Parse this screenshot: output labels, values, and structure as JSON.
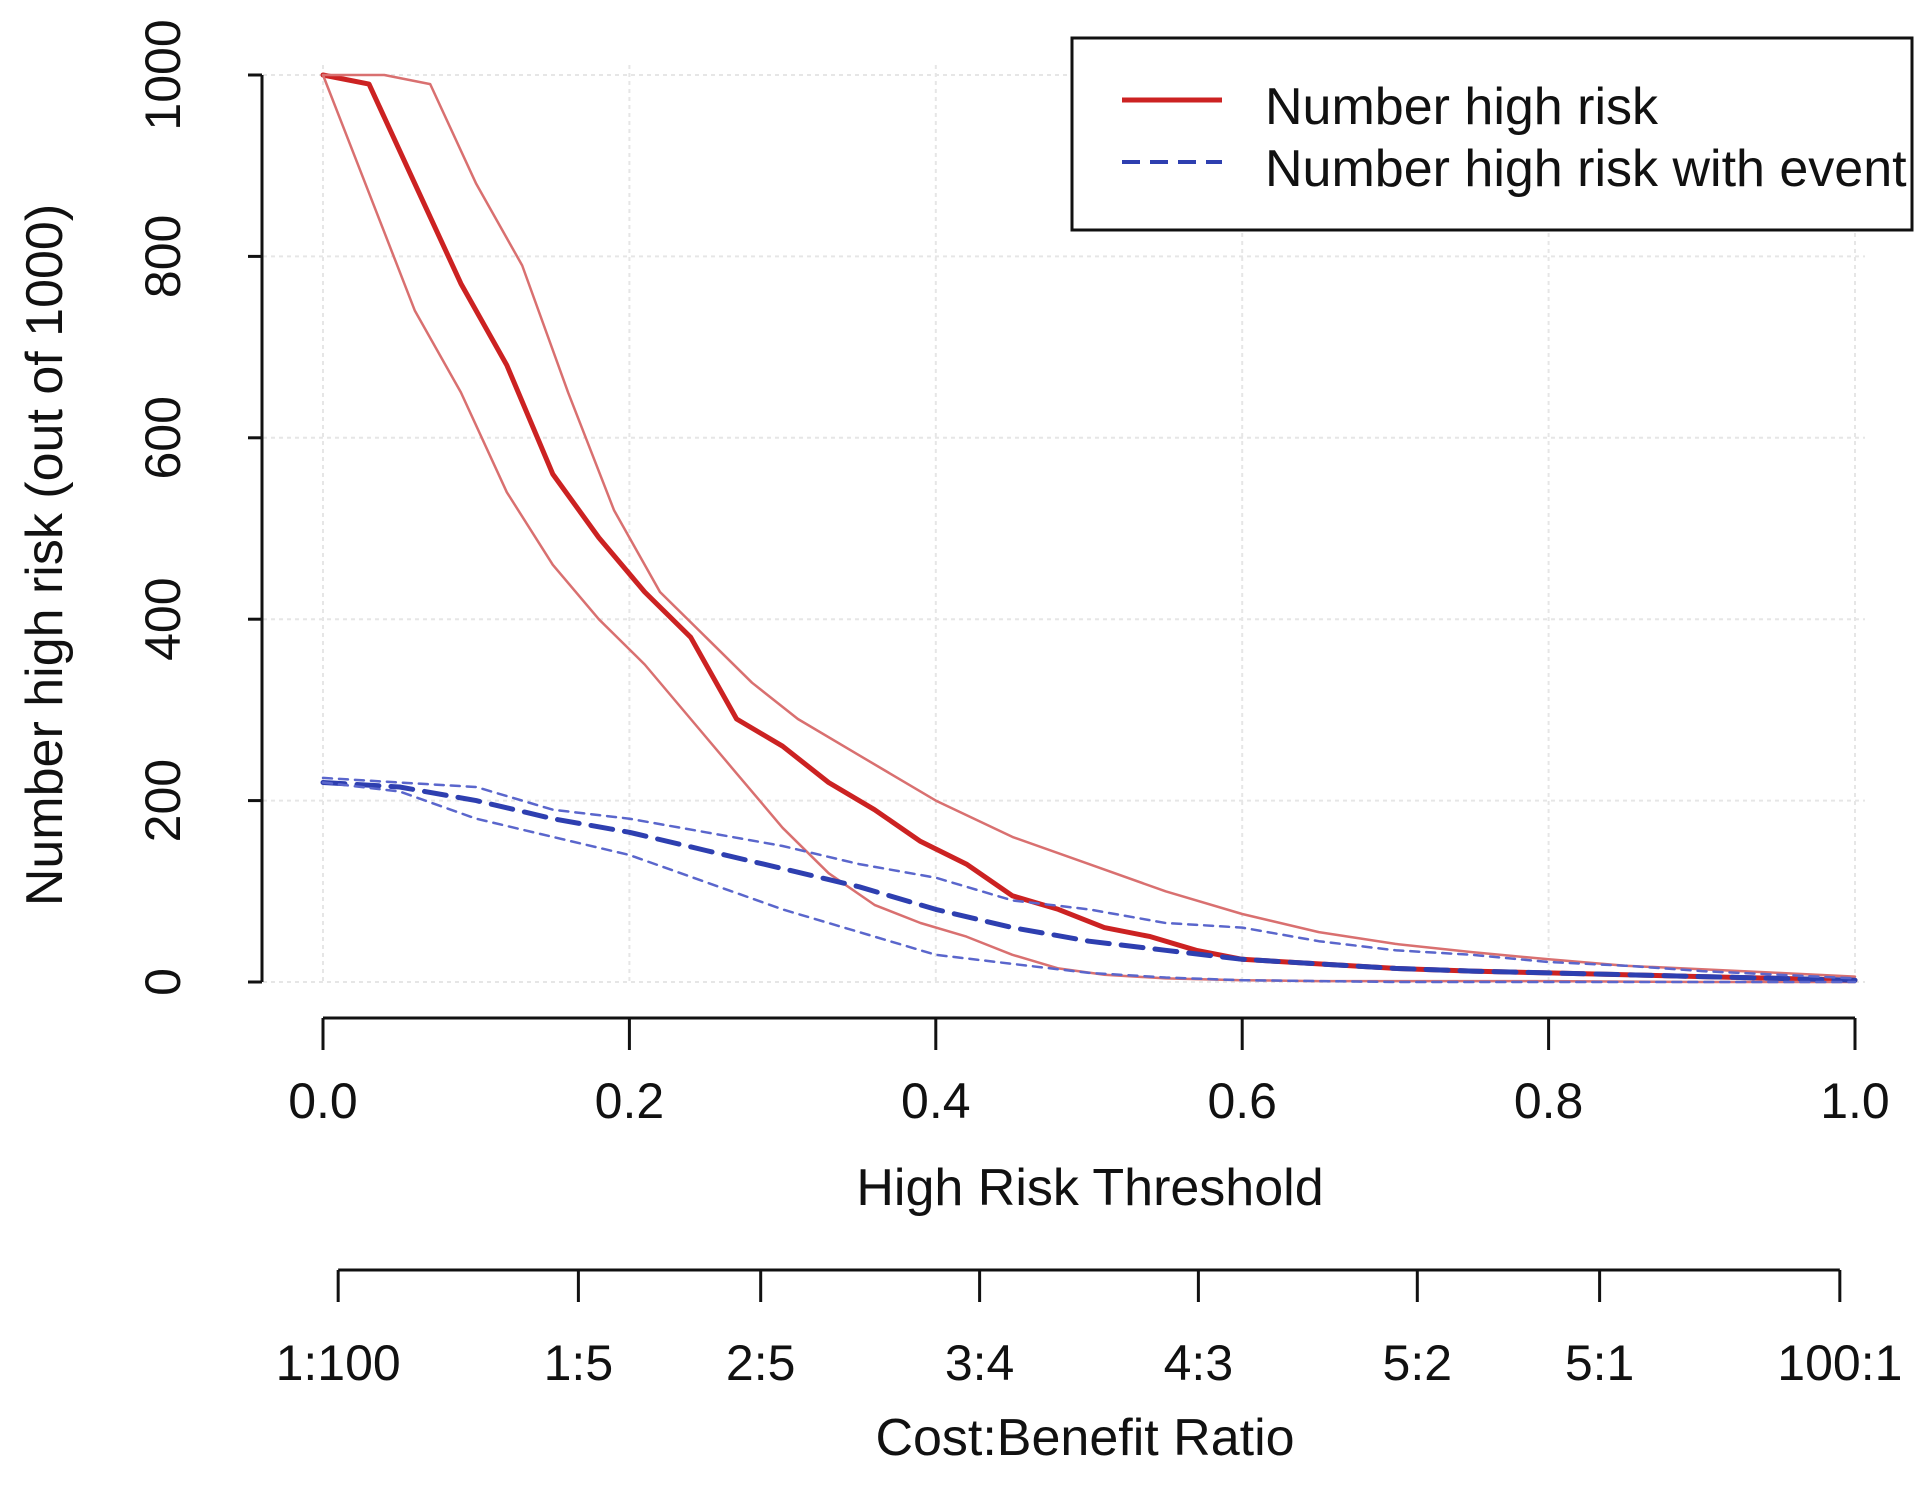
{
  "chart_data": {
    "type": "line",
    "xlabel": "High Risk Threshold",
    "ylabel": "Number high risk (out of 1000)",
    "xlim": [
      0,
      1
    ],
    "ylim": [
      0,
      1000
    ],
    "grid": true,
    "legend_position": "top-right",
    "x_ticks": [
      "0.0",
      "0.2",
      "0.4",
      "0.6",
      "0.8",
      "1.0"
    ],
    "x_tick_values": [
      0,
      0.2,
      0.4,
      0.6,
      0.8,
      1.0
    ],
    "y_ticks": [
      "0",
      "200",
      "400",
      "600",
      "800",
      "1000"
    ],
    "y_tick_values": [
      0,
      200,
      400,
      600,
      800,
      1000
    ],
    "secondary_axis": {
      "label": "Cost:Benefit Ratio",
      "ticks": [
        "1:100",
        "1:5",
        "2:5",
        "3:4",
        "4:3",
        "5:2",
        "5:1",
        "100:1"
      ],
      "tick_thresholds": [
        0.0099,
        0.1667,
        0.2857,
        0.4286,
        0.5714,
        0.7143,
        0.8333,
        0.9901
      ]
    },
    "legend": [
      {
        "name": "Number high risk",
        "color": "#cc2222",
        "style": "solid"
      },
      {
        "name": "Number high risk with event",
        "color": "#2e3fb0",
        "style": "dashed"
      }
    ],
    "series": [
      {
        "name": "Number high risk",
        "role": "main",
        "color": "#cc2222",
        "style": "solid",
        "x": [
          0,
          0.03,
          0.06,
          0.09,
          0.12,
          0.15,
          0.18,
          0.21,
          0.24,
          0.27,
          0.3,
          0.33,
          0.36,
          0.39,
          0.42,
          0.45,
          0.48,
          0.51,
          0.54,
          0.57,
          0.6,
          0.65,
          0.7,
          0.75,
          0.8,
          0.85,
          0.9,
          0.95,
          1.0
        ],
        "y": [
          1000,
          990,
          880,
          770,
          680,
          560,
          490,
          430,
          380,
          290,
          260,
          220,
          190,
          155,
          130,
          95,
          80,
          60,
          50,
          35,
          25,
          20,
          15,
          12,
          10,
          8,
          6,
          4,
          2
        ]
      },
      {
        "name": "Number high risk (upper bound)",
        "role": "ci",
        "color": "#d97070",
        "style": "solid",
        "x": [
          0,
          0.04,
          0.07,
          0.1,
          0.13,
          0.16,
          0.19,
          0.22,
          0.25,
          0.28,
          0.31,
          0.35,
          0.4,
          0.45,
          0.5,
          0.55,
          0.6,
          0.65,
          0.7,
          0.75,
          0.8,
          0.85,
          0.9,
          0.95,
          1.0
        ],
        "y": [
          1000,
          1000,
          990,
          880,
          790,
          650,
          520,
          430,
          380,
          330,
          290,
          250,
          200,
          160,
          130,
          100,
          75,
          55,
          42,
          33,
          25,
          18,
          14,
          10,
          6
        ]
      },
      {
        "name": "Number high risk (lower bound)",
        "role": "ci",
        "color": "#d97070",
        "style": "solid",
        "x": [
          0,
          0.03,
          0.06,
          0.09,
          0.12,
          0.15,
          0.18,
          0.21,
          0.24,
          0.27,
          0.3,
          0.33,
          0.36,
          0.39,
          0.42,
          0.45,
          0.48,
          0.51,
          0.55,
          0.6,
          0.65,
          0.7,
          0.8,
          0.9,
          1.0
        ],
        "y": [
          1000,
          870,
          740,
          650,
          540,
          460,
          400,
          350,
          290,
          230,
          170,
          120,
          85,
          65,
          50,
          30,
          15,
          8,
          4,
          2,
          1,
          1,
          1,
          0,
          0
        ]
      },
      {
        "name": "Number high risk with event",
        "role": "main",
        "color": "#2e3fb0",
        "style": "dashed",
        "x": [
          0,
          0.05,
          0.1,
          0.15,
          0.2,
          0.25,
          0.3,
          0.35,
          0.4,
          0.45,
          0.5,
          0.55,
          0.6,
          0.65,
          0.7,
          0.75,
          0.8,
          0.85,
          0.9,
          0.95,
          1.0
        ],
        "y": [
          220,
          215,
          200,
          180,
          165,
          145,
          125,
          105,
          80,
          60,
          45,
          35,
          25,
          20,
          15,
          12,
          10,
          8,
          6,
          4,
          2
        ]
      },
      {
        "name": "Number high risk with event (upper bound)",
        "role": "ci",
        "color": "#5a66cc",
        "style": "dashed",
        "x": [
          0,
          0.05,
          0.1,
          0.15,
          0.2,
          0.25,
          0.3,
          0.35,
          0.4,
          0.45,
          0.5,
          0.55,
          0.6,
          0.65,
          0.7,
          0.75,
          0.8,
          0.85,
          0.9,
          0.95,
          1.0
        ],
        "y": [
          225,
          220,
          215,
          190,
          180,
          165,
          150,
          130,
          115,
          90,
          80,
          65,
          60,
          45,
          35,
          30,
          22,
          18,
          12,
          8,
          4
        ]
      },
      {
        "name": "Number high risk with event (lower bound)",
        "role": "ci",
        "color": "#5a66cc",
        "style": "dashed",
        "x": [
          0,
          0.05,
          0.1,
          0.15,
          0.2,
          0.25,
          0.3,
          0.35,
          0.4,
          0.45,
          0.5,
          0.55,
          0.6,
          0.65,
          0.7,
          0.8,
          0.9,
          1.0
        ],
        "y": [
          220,
          210,
          180,
          160,
          140,
          110,
          80,
          55,
          30,
          20,
          10,
          5,
          2,
          1,
          0,
          0,
          0,
          0
        ]
      }
    ]
  }
}
